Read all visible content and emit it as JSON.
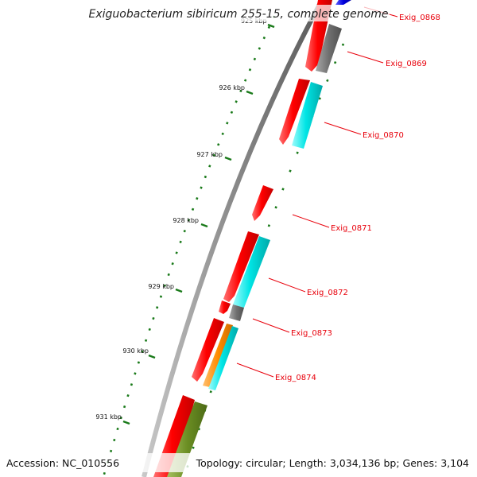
{
  "title": "Exiguobacterium sibiricum 255-15, complete genome",
  "footer": {
    "accession": "Accession: NC_010556",
    "summary": "Topology: circular; Length: 3,034,136 bp; Genes: 3,104"
  },
  "scale_labels": [
    "925 kbp",
    "926 kbp",
    "927 kbp",
    "928 kbp",
    "929 kbp",
    "930 kbp",
    "931 kbp"
  ],
  "gene_labels": [
    "Exig_0868",
    "Exig_0869",
    "Exig_0870",
    "Exig_0871",
    "Exig_0872",
    "Exig_0873",
    "Exig_0874"
  ],
  "colors": {
    "forward_cds": "#ff0000",
    "backbone": "#808080",
    "cyan_feature": "#00e5e5",
    "grey_feature": "#707070",
    "orange_feature": "#ff8c00",
    "olive_feature": "#6b8e23",
    "blue_feature": "#0000dd",
    "tick_green": "#1a7a1a",
    "label_red": "#e8000b"
  }
}
